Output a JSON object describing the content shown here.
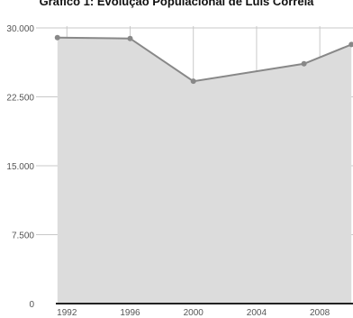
{
  "chart_data": {
    "type": "area",
    "title": "Gráfico 1: Evolução Populacional de Luís Correia",
    "xlabel": "",
    "ylabel": "",
    "x_ticks": [
      "1992",
      "1996",
      "2000",
      "2004",
      "2008"
    ],
    "y_ticks": [
      "0",
      "7.500",
      "15.000",
      "22.500",
      "30.000"
    ],
    "xlim": [
      1991.3,
      2010.1
    ],
    "ylim": [
      0,
      30000
    ],
    "grid": true,
    "legend": "none",
    "series": [
      {
        "x": [
          1991.4,
          1996,
          2000,
          2007,
          2010
        ],
        "values": [
          28950,
          28850,
          24200,
          26100,
          28200
        ]
      }
    ],
    "colors": {
      "fill": "#dcdcdc",
      "line": "#888888",
      "point": "#888888",
      "grid": "#c8c8c8",
      "axis": "#222222"
    }
  }
}
